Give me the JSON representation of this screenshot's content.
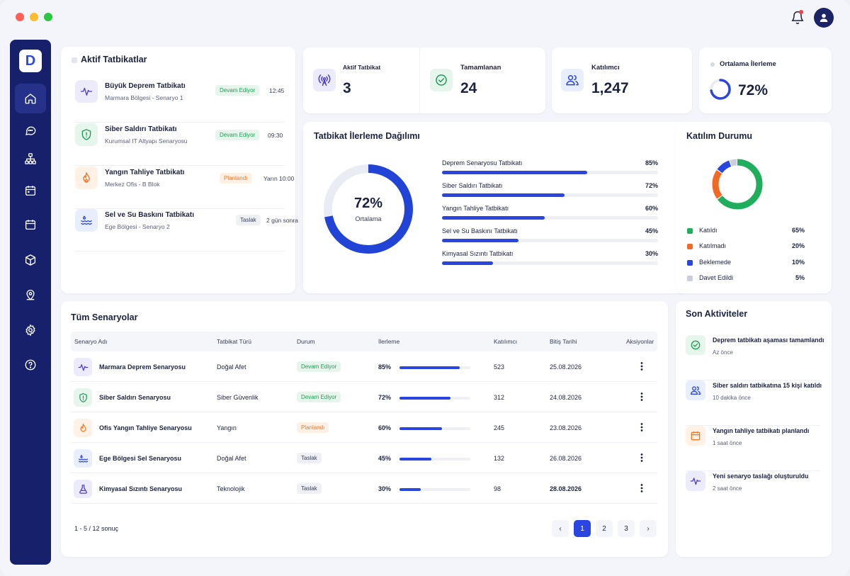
{
  "window": {
    "dots": [
      "#ff5f57",
      "#febc2e",
      "#28c840"
    ]
  },
  "header": {
    "bell_icon": "bell-icon",
    "avatar_icon": "user-icon"
  },
  "sidebar": {
    "logo": "D",
    "items": [
      {
        "icon": "home-icon",
        "active": true
      },
      {
        "icon": "chat-icon"
      },
      {
        "icon": "org-chart-icon"
      },
      {
        "icon": "calendar-icon"
      },
      {
        "icon": "calendar-alt-icon"
      },
      {
        "icon": "box-icon"
      },
      {
        "icon": "map-pin-icon"
      },
      {
        "icon": "settings-icon"
      },
      {
        "icon": "help-icon"
      }
    ]
  },
  "active_drills": {
    "title": "Aktif Tatbikatlar",
    "items": [
      {
        "name": "Büyük Deprem Tatbikatı",
        "sub": "Marmara Bölgesi - Senaryo 1",
        "status": "Devam Ediyor",
        "time": "12:45",
        "icon": "pulse-icon"
      },
      {
        "name": "Siber Saldırı Tatbikatı",
        "sub": "Kurumsal IT Altyapı Senaryosu",
        "status": "Devam Ediyor",
        "time": "09:30",
        "icon": "shield-icon"
      },
      {
        "name": "Yangın Tahliye Tatbikatı",
        "sub": "Merkez Ofis - B Blok",
        "status": "Planlandı",
        "time": "Yarın 10:00",
        "icon": "fire-icon"
      },
      {
        "name": "Sel ve Su Baskını Tatbikatı",
        "sub": "Ege Bölgesi - Senaryo 2",
        "status": "Taslak",
        "time": "2 gün sonra",
        "icon": "water-icon"
      }
    ]
  },
  "stats": {
    "active": {
      "label": "Aktif Tatbikat",
      "value": "3",
      "icon": "broadcast-icon"
    },
    "completed": {
      "label": "Tamamlanan",
      "value": "24",
      "icon": "check-circle-icon"
    },
    "participants": {
      "label": "Katılımcı",
      "value": "1,247",
      "icon": "users-icon"
    },
    "avg_progress": {
      "label": "Ortalama İlerleme",
      "value": "72%",
      "fraction": 0.72
    }
  },
  "progress_distribution": {
    "title": "Tatbikat İlerleme Dağılımı",
    "center_value": "72%",
    "center_label": "Ortalama",
    "fraction": 0.72,
    "items": [
      {
        "label": "Deprem Senaryosu Tatbikatı",
        "pct": "85%",
        "value": 85
      },
      {
        "label": "Siber Saldırı Tatbikatı",
        "pct": "72%",
        "value": 72
      },
      {
        "label": "Yangın Tahliye Tatbikatı",
        "pct": "60%",
        "value": 60
      },
      {
        "label": "Sel ve Su Baskını Tatbikatı",
        "pct": "45%",
        "value": 45
      },
      {
        "label": "Kimyasal Sızıntı Tatbikatı",
        "pct": "30%",
        "value": 30
      }
    ]
  },
  "participation": {
    "title": "Katılım Durumu",
    "items": [
      {
        "label": "Katıldı",
        "pct": "65%",
        "value": 65,
        "color": "#1fae5b"
      },
      {
        "label": "Katılmadı",
        "pct": "20%",
        "value": 20,
        "color": "#f06a25"
      },
      {
        "label": "Beklemede",
        "pct": "10%",
        "value": 10,
        "color": "#2b45e0"
      },
      {
        "label": "Davet Edildi",
        "pct": "5%",
        "value": 5,
        "color": "#c9cfdd"
      }
    ]
  },
  "scenarios": {
    "title": "Tüm Senaryolar",
    "columns": [
      "Senaryo Adı",
      "Tatbikat Türü",
      "Durum",
      "İlerleme",
      "Katılımcı",
      "Bitiş Tarihi",
      "Aksiyonlar"
    ],
    "rows": [
      {
        "name": "Marmara Deprem Senaryosu",
        "type": "Doğal Afet",
        "status": "Devam Ediyor",
        "progress": "85%",
        "value": 85,
        "participants": "523",
        "end": "25.08.2026",
        "icon": "pulse-icon"
      },
      {
        "name": "Siber Saldırı Senaryosu",
        "type": "Siber Güvenlik",
        "status": "Devam Ediyor",
        "progress": "72%",
        "value": 72,
        "participants": "312",
        "end": "24.08.2026",
        "icon": "shield-icon"
      },
      {
        "name": "Ofis Yangın Tahliye Senaryosu",
        "type": "Yangın",
        "status": "Planlandı",
        "progress": "60%",
        "value": 60,
        "participants": "245",
        "end": "23.08.2026",
        "icon": "fire-icon"
      },
      {
        "name": "Ege Bölgesi Sel Senaryosu",
        "type": "Doğal Afet",
        "status": "Taslak",
        "progress": "45%",
        "value": 45,
        "participants": "132",
        "end": "26.08.2026",
        "icon": "water-icon"
      },
      {
        "name": "Kimyasal Sızıntı Senaryosu",
        "type": "Teknolojik",
        "status": "Taslak",
        "progress": "30%",
        "value": 30,
        "participants": "98",
        "end": "28.08.2026",
        "icon": "flask-icon"
      }
    ],
    "pagination": {
      "summary": "1 - 5 / 12 sonuç",
      "pages": [
        "1",
        "2",
        "3"
      ],
      "current": "1",
      "prev": "‹",
      "next": "›"
    }
  },
  "recent_activity": {
    "title": "Son Aktiviteler",
    "items": [
      {
        "title": "Deprem tatbikatı aşaması tamamlandı",
        "time": "Az önce",
        "icon": "check-circle-icon"
      },
      {
        "title": "Siber saldırı tatbikatına 15 kişi katıldı",
        "time": "10 dakika önce",
        "icon": "users-icon"
      },
      {
        "title": "Yangın tahliye tatbikatı planlandı",
        "time": "1 saat önce",
        "icon": "calendar-icon"
      },
      {
        "title": "Yeni senaryo taslağı oluşturuldu",
        "time": "2 saat önce",
        "icon": "pulse-icon"
      }
    ]
  }
}
